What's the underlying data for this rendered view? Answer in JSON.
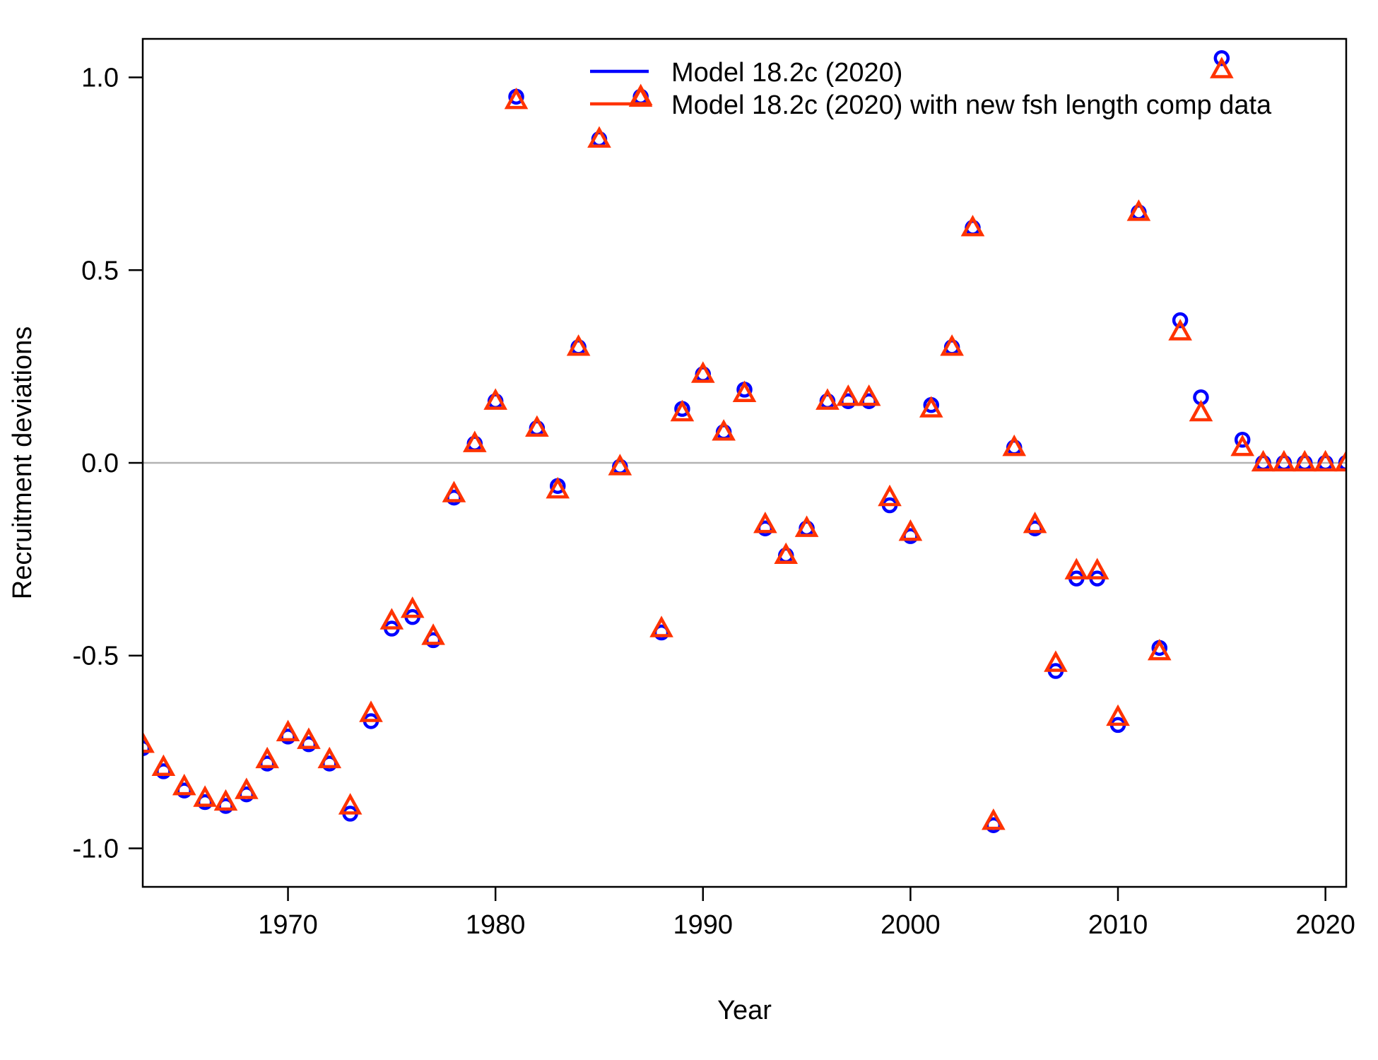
{
  "chart_data": {
    "type": "scatter",
    "xlabel": "Year",
    "ylabel": "Recruitment deviations",
    "xlim": [
      1963,
      2021
    ],
    "ylim": [
      -1.1,
      1.1
    ],
    "x_ticks": [
      1970,
      1980,
      1990,
      2000,
      2010,
      2020
    ],
    "y_ticks": [
      -1.0,
      -0.5,
      0.0,
      0.5,
      1.0
    ],
    "y_tick_labels": [
      "-1.0",
      "-0.5",
      "0.0",
      "0.5",
      "1.0"
    ],
    "reference_line_y": 0,
    "legend_position": "top-right",
    "x": [
      1963,
      1964,
      1965,
      1966,
      1967,
      1968,
      1969,
      1970,
      1971,
      1972,
      1973,
      1974,
      1975,
      1976,
      1977,
      1978,
      1979,
      1980,
      1981,
      1982,
      1983,
      1984,
      1985,
      1986,
      1987,
      1988,
      1989,
      1990,
      1991,
      1992,
      1993,
      1994,
      1995,
      1996,
      1997,
      1998,
      1999,
      2000,
      2001,
      2002,
      2003,
      2004,
      2005,
      2006,
      2007,
      2008,
      2009,
      2010,
      2011,
      2012,
      2013,
      2014,
      2015,
      2016,
      2017,
      2018,
      2019,
      2020,
      2021
    ],
    "series": [
      {
        "name": "Model 18.2c (2020)",
        "color": "#0000FF",
        "marker": "circle",
        "values": [
          -0.74,
          -0.8,
          -0.85,
          -0.88,
          -0.89,
          -0.86,
          -0.78,
          -0.71,
          -0.73,
          -0.78,
          -0.91,
          -0.67,
          -0.43,
          -0.4,
          -0.46,
          -0.09,
          0.05,
          0.16,
          0.95,
          0.09,
          -0.06,
          0.3,
          0.84,
          -0.01,
          0.95,
          -0.44,
          0.14,
          0.23,
          0.08,
          0.19,
          -0.17,
          -0.24,
          -0.17,
          0.16,
          0.16,
          0.16,
          -0.11,
          -0.19,
          0.15,
          0.3,
          0.61,
          -0.94,
          0.04,
          -0.17,
          -0.54,
          -0.3,
          -0.3,
          -0.68,
          0.65,
          -0.48,
          0.37,
          0.17,
          1.05,
          0.06,
          0.0,
          0.0,
          0.0,
          0.0,
          0.0
        ]
      },
      {
        "name": "Model 18.2c (2020) with new fsh length comp data",
        "color": "#FF3300",
        "marker": "triangle",
        "values": [
          -0.73,
          -0.79,
          -0.84,
          -0.87,
          -0.88,
          -0.85,
          -0.77,
          -0.7,
          -0.72,
          -0.77,
          -0.89,
          -0.65,
          -0.41,
          -0.38,
          -0.45,
          -0.08,
          0.05,
          0.16,
          0.94,
          0.09,
          -0.07,
          0.3,
          0.84,
          -0.01,
          0.95,
          -0.43,
          0.13,
          0.23,
          0.08,
          0.18,
          -0.16,
          -0.24,
          -0.17,
          0.16,
          0.17,
          0.17,
          -0.09,
          -0.18,
          0.14,
          0.3,
          0.61,
          -0.93,
          0.04,
          -0.16,
          -0.52,
          -0.28,
          -0.28,
          -0.66,
          0.65,
          -0.49,
          0.34,
          0.13,
          1.02,
          0.04,
          0.0,
          0.0,
          0.0,
          0.0,
          0.0
        ]
      }
    ]
  }
}
